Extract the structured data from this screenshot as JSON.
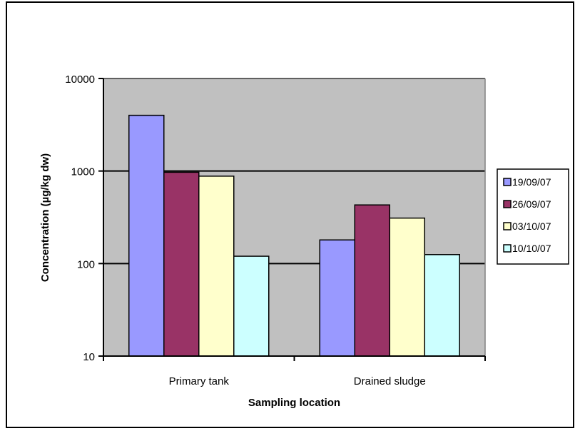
{
  "chart_data": {
    "type": "bar",
    "title": "",
    "xlabel": "Sampling location",
    "ylabel": "Concentration (µg/kg dw)",
    "yscale": "log",
    "ylim": [
      10,
      10000
    ],
    "yticks": [
      "10",
      "100",
      "1000",
      "10000"
    ],
    "categories": [
      "Primary tank",
      "Drained sludge"
    ],
    "series": [
      {
        "name": "19/09/07",
        "values": [
          4000,
          180
        ],
        "color": "#9999ff"
      },
      {
        "name": "26/09/07",
        "values": [
          970,
          430
        ],
        "color": "#993366"
      },
      {
        "name": "03/10/07",
        "values": [
          880,
          310
        ],
        "color": "#ffffcc"
      },
      {
        "name": "10/10/07",
        "values": [
          120,
          125
        ],
        "color": "#ccffff"
      }
    ],
    "grid": true,
    "legend_position": "right",
    "plot_background": "#c0c0c0"
  }
}
